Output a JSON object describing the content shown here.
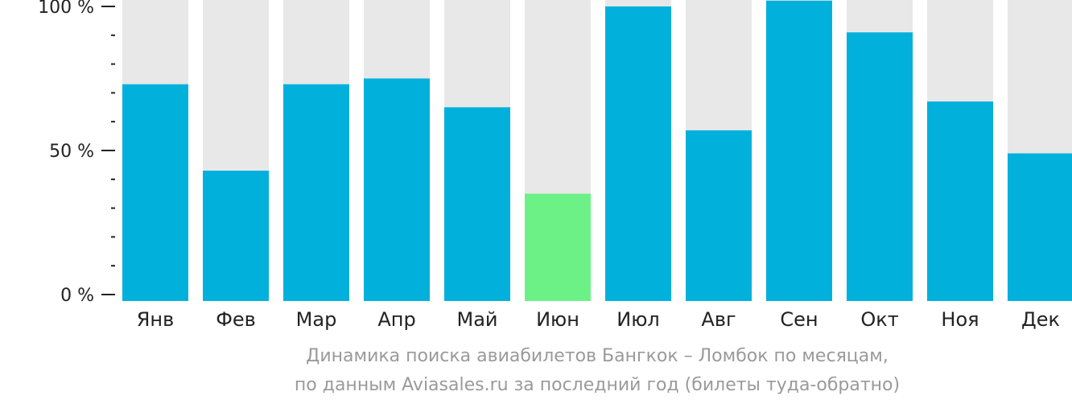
{
  "chart_data": {
    "type": "bar",
    "categories": [
      "Янв",
      "Фев",
      "Мар",
      "Апр",
      "Май",
      "Июн",
      "Июл",
      "Авг",
      "Сен",
      "Окт",
      "Ноя",
      "Дек"
    ],
    "values": [
      73,
      43,
      73,
      75,
      65,
      35,
      100,
      57,
      102,
      91,
      67,
      49
    ],
    "highlight_index": 5,
    "ylim": [
      0,
      100
    ],
    "y_ticks": [
      {
        "value": 100,
        "label": "100 %"
      },
      {
        "value": 50,
        "label": "50 %"
      },
      {
        "value": 0,
        "label": "0 %"
      }
    ],
    "colors": {
      "bar": "#02b0dc",
      "highlight": "#6cf186",
      "track": "#e8e8e8",
      "axis": "#222222"
    }
  },
  "caption": {
    "line1": "Динамика поиска авиабилетов Бангкок – Ломбок по месяцам,",
    "line2": "по данным Aviasales.ru за последний год (билеты туда-обратно)"
  }
}
